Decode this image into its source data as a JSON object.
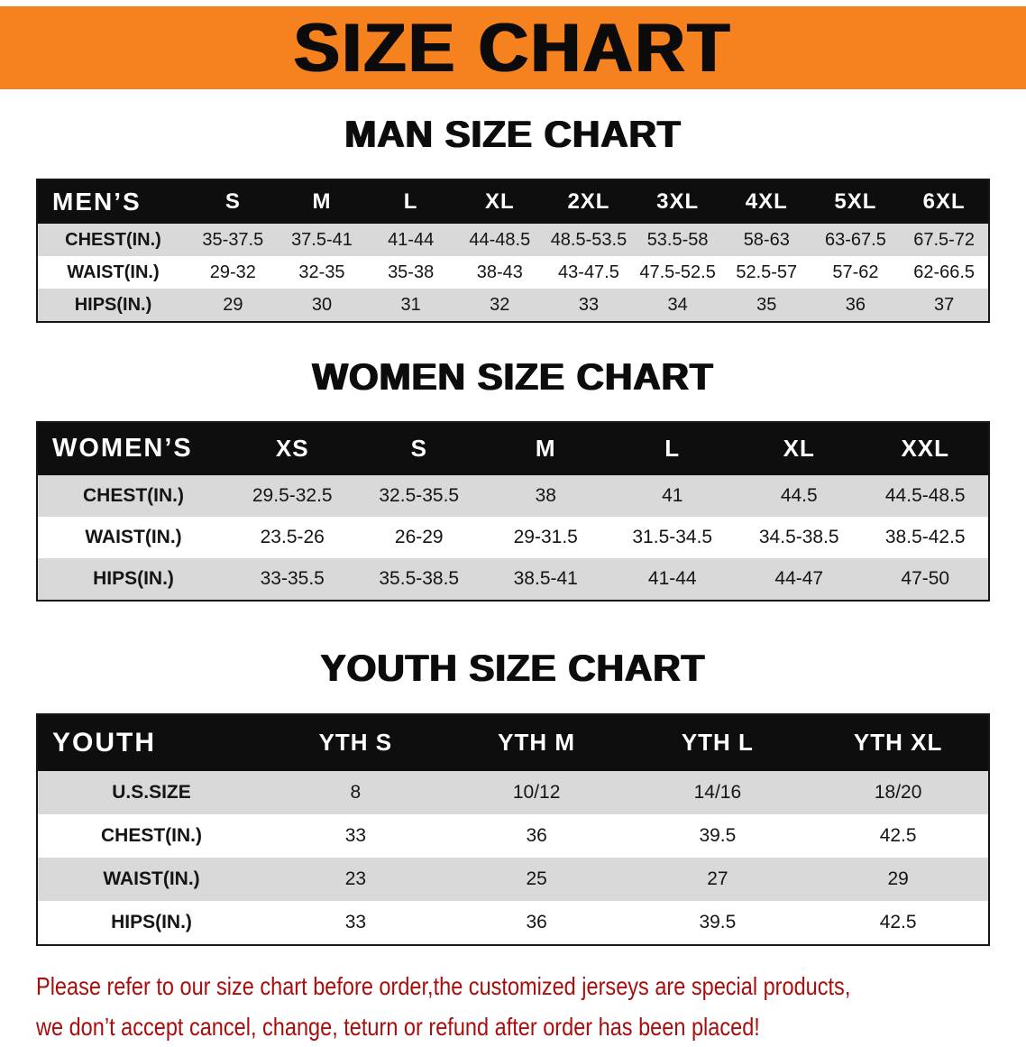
{
  "banner": {
    "title": "SIZE CHART"
  },
  "colors": {
    "banner_bg": "#F5821F",
    "header_bg": "#0E0E0E",
    "stripe": "#D9D9D9",
    "disclaimer_red": "#A90E0E"
  },
  "sections": [
    {
      "id": "men",
      "heading": "MAN SIZE CHART",
      "table": {
        "header": [
          "MEN’S",
          "S",
          "M",
          "L",
          "XL",
          "2XL",
          "3XL",
          "4XL",
          "5XL",
          "6XL"
        ],
        "rows": [
          [
            "CHEST(IN.)",
            "35-37.5",
            "37.5-41",
            "41-44",
            "44-48.5",
            "48.5-53.5",
            "53.5-58",
            "58-63",
            "63-67.5",
            "67.5-72"
          ],
          [
            "WAIST(IN.)",
            "29-32",
            "32-35",
            "35-38",
            "38-43",
            "43-47.5",
            "47.5-52.5",
            "52.5-57",
            "57-62",
            "62-66.5"
          ],
          [
            "HIPS(IN.)",
            "29",
            "30",
            "31",
            "32",
            "33",
            "34",
            "35",
            "36",
            "37"
          ]
        ]
      }
    },
    {
      "id": "women",
      "heading": "WOMEN SIZE CHART",
      "table": {
        "header": [
          "WOMEN’S",
          "XS",
          "S",
          "M",
          "L",
          "XL",
          "XXL"
        ],
        "rows": [
          [
            "CHEST(IN.)",
            "29.5-32.5",
            "32.5-35.5",
            "38",
            "41",
            "44.5",
            "44.5-48.5"
          ],
          [
            "WAIST(IN.)",
            "23.5-26",
            "26-29",
            "29-31.5",
            "31.5-34.5",
            "34.5-38.5",
            "38.5-42.5"
          ],
          [
            "HIPS(IN.)",
            "33-35.5",
            "35.5-38.5",
            "38.5-41",
            "41-44",
            "44-47",
            "47-50"
          ]
        ]
      }
    },
    {
      "id": "youth",
      "heading": "YOUTH SIZE CHART",
      "table": {
        "header": [
          "YOUTH",
          "YTH S",
          "YTH M",
          "YTH L",
          "YTH XL"
        ],
        "rows": [
          [
            "U.S.SIZE",
            "8",
            "10/12",
            "14/16",
            "18/20"
          ],
          [
            "CHEST(IN.)",
            "33",
            "36",
            "39.5",
            "42.5"
          ],
          [
            "WAIST(IN.)",
            "23",
            "25",
            "27",
            "29"
          ],
          [
            "HIPS(IN.)",
            "33",
            "36",
            "39.5",
            "42.5"
          ]
        ]
      }
    }
  ],
  "disclaimer": {
    "line1": "Please refer to our size chart before order,the customized jerseys are special products,",
    "line2": "we don’t accept cancel, change, teturn or refund after order has been placed!"
  }
}
